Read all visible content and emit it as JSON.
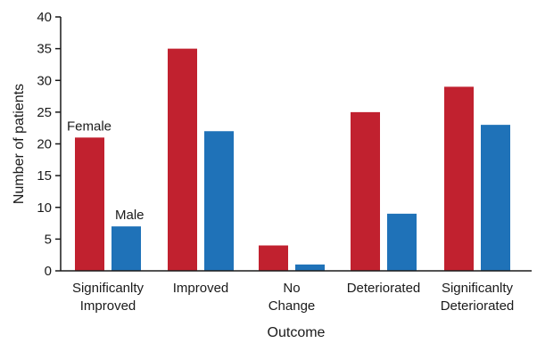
{
  "chart_data": {
    "type": "bar",
    "title": "",
    "xlabel": "Outcome",
    "ylabel": "Number of patients",
    "ylim": [
      0,
      40
    ],
    "yticks": [
      0,
      5,
      10,
      15,
      20,
      25,
      30,
      35,
      40
    ],
    "grid": false,
    "categories": [
      [
        "Significanlty",
        "Improved"
      ],
      [
        "Improved"
      ],
      [
        "No",
        "Change"
      ],
      [
        "Deteriorated"
      ],
      [
        "Significanlty",
        "Deteriorated"
      ]
    ],
    "series": [
      {
        "name": "Female",
        "color": "#c1212f",
        "values": [
          21,
          35,
          4,
          25,
          29
        ]
      },
      {
        "name": "Male",
        "color": "#1f72b8",
        "values": [
          7,
          22,
          1,
          9,
          23
        ]
      }
    ],
    "annotations": [
      {
        "text": "Female",
        "series": 0,
        "category": 0
      },
      {
        "text": "Male",
        "series": 1,
        "category": 0
      }
    ]
  }
}
